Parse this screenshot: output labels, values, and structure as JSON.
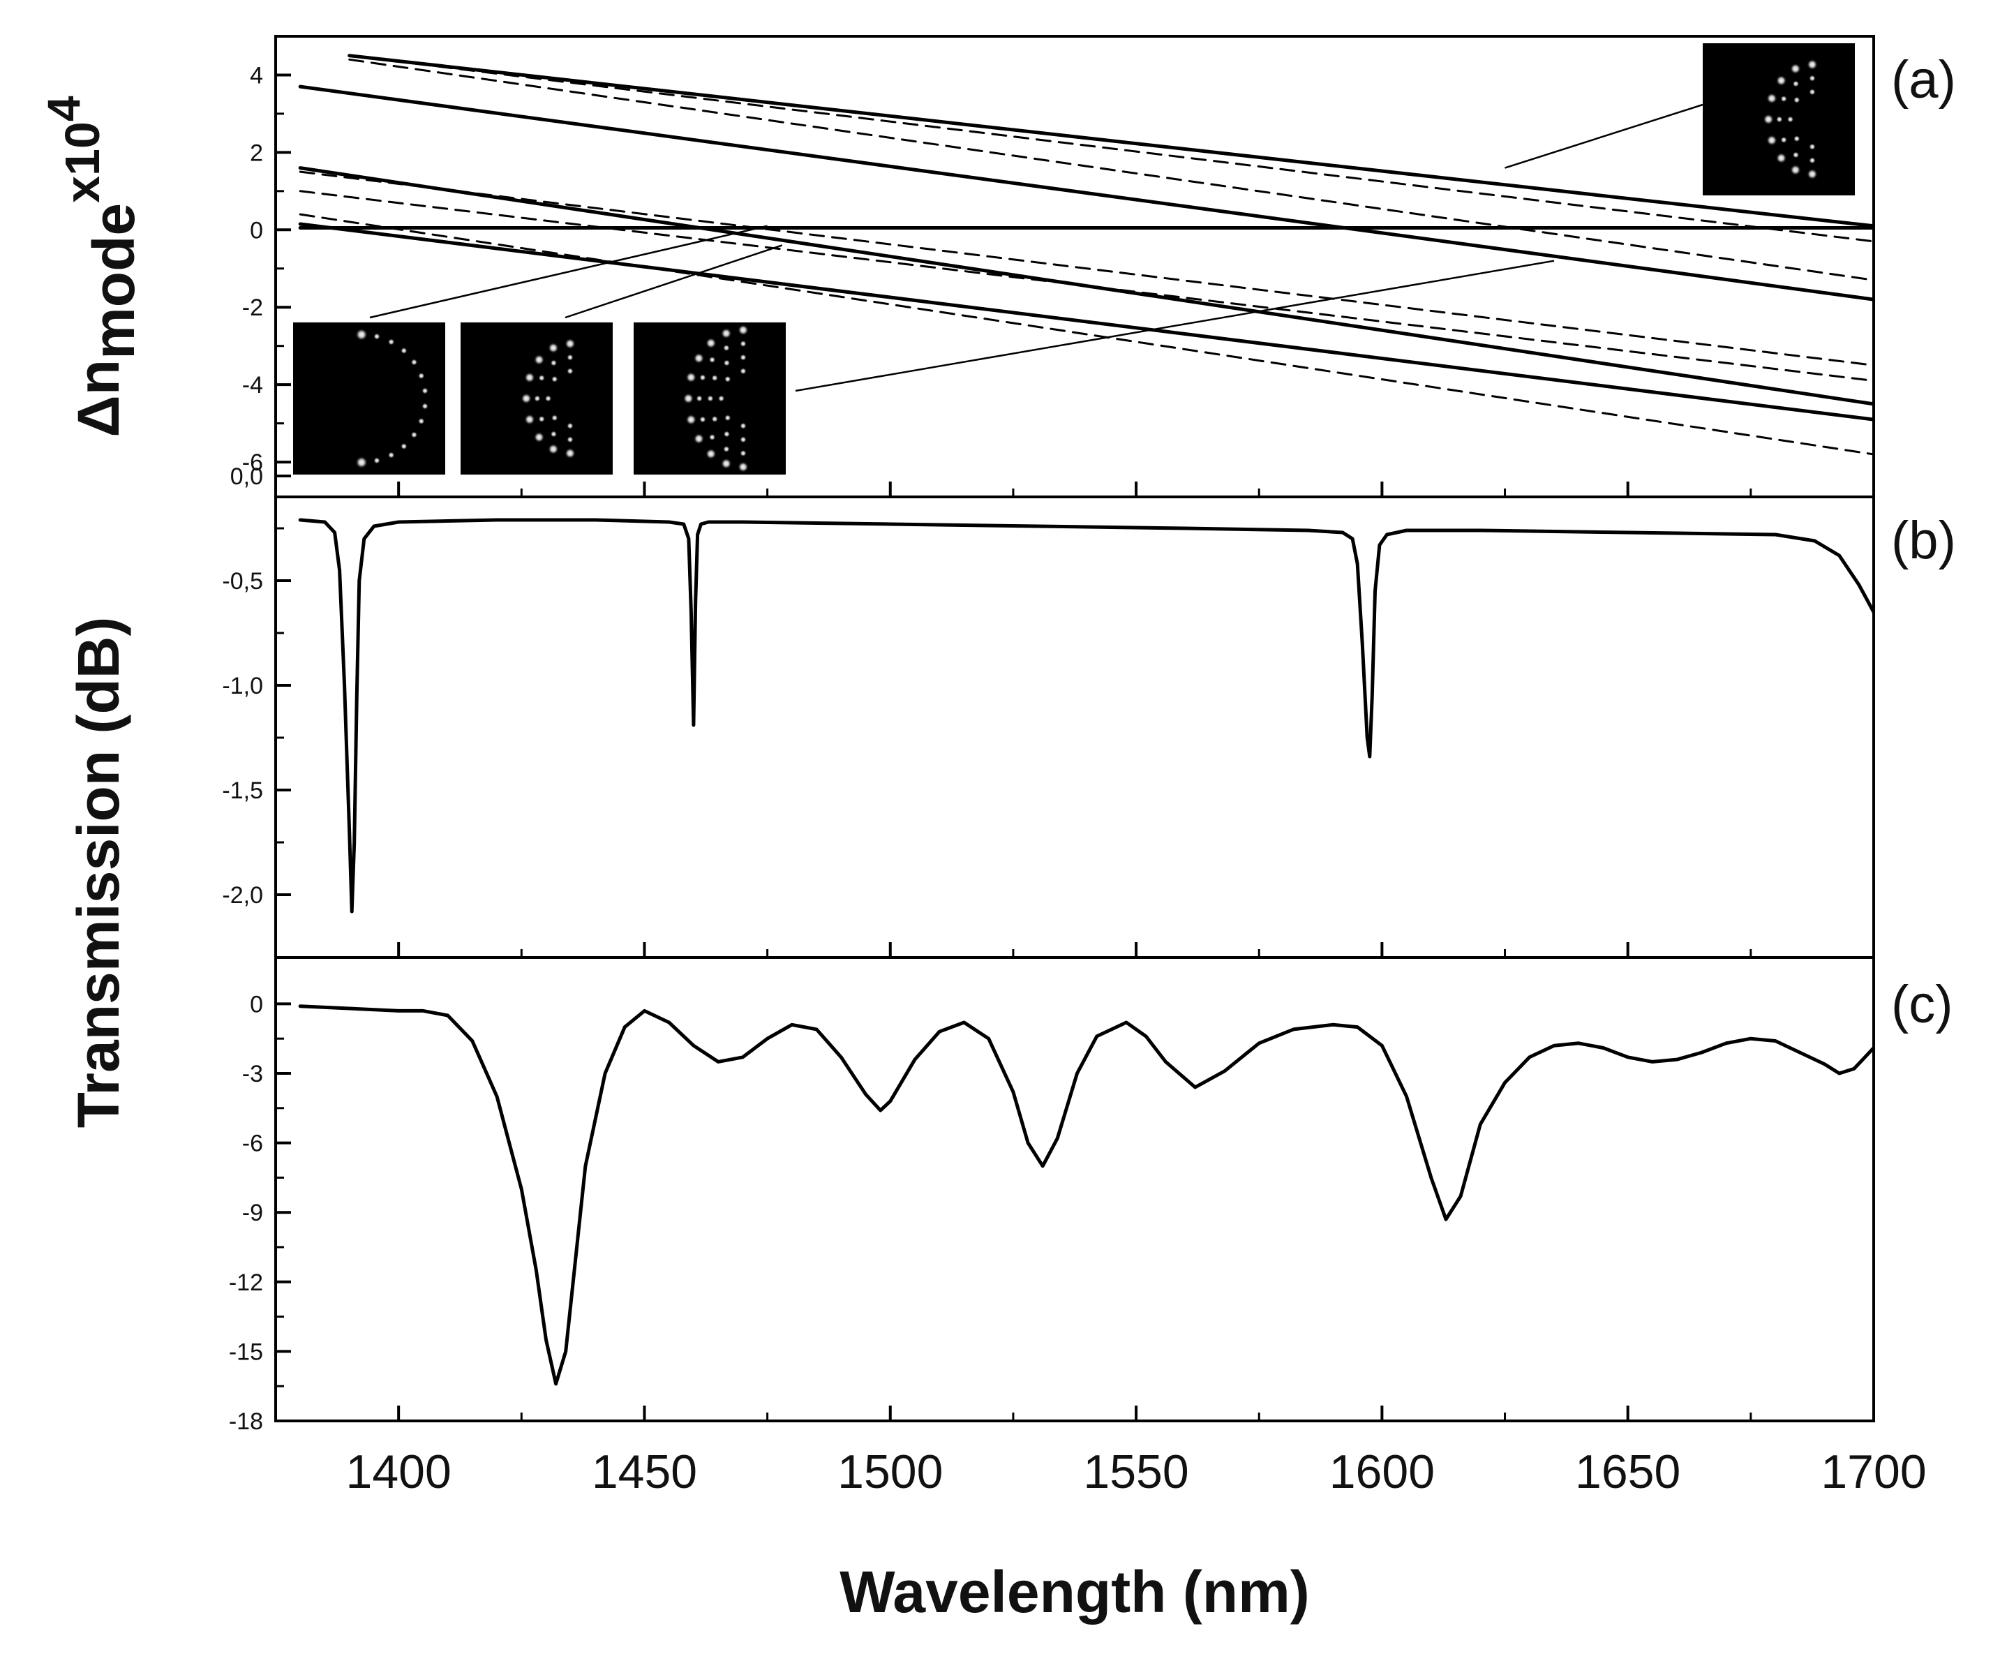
{
  "figure": {
    "xlabel": "Wavelength (nm)",
    "ylabel_b": "Transmission (dB)",
    "ylabel_a": {
      "base": "Δn",
      "sub": "mode",
      "mult": "x10",
      "exp": "4"
    },
    "panel_labels": [
      "(a)",
      "(b)",
      "(c)"
    ],
    "xlim": [
      1375,
      1700
    ],
    "xticks": [
      1400,
      1450,
      1500,
      1550,
      1600,
      1650,
      1700
    ],
    "xtick_labels": [
      "1400",
      "1450",
      "1500",
      "1550",
      "1600",
      "1650",
      "1700"
    ]
  },
  "chart_data": [
    {
      "panel": "(a)",
      "type": "line",
      "ylabel": "Δn_mode x10^4",
      "ylim": [
        -6.9,
        5
      ],
      "yticks": [
        4,
        2,
        0,
        -2,
        -4,
        -6
      ],
      "ytick_labels": [
        "4",
        "2",
        "0",
        "-2",
        "-4",
        "-6"
      ],
      "series": [
        {
          "name": "solid-1",
          "style": "solid",
          "x": [
            1390,
            1700
          ],
          "y": [
            4.5,
            0.1
          ]
        },
        {
          "name": "solid-2",
          "style": "solid",
          "x": [
            1380,
            1700
          ],
          "y": [
            3.7,
            -1.8
          ]
        },
        {
          "name": "solid-3",
          "style": "solid",
          "x": [
            1380,
            1700
          ],
          "y": [
            1.6,
            -4.5
          ]
        },
        {
          "name": "solid-4",
          "style": "solid",
          "x": [
            1380,
            1700
          ],
          "y": [
            0.15,
            -4.9
          ]
        },
        {
          "name": "solid-5",
          "style": "solid",
          "x": [
            1380,
            1700
          ],
          "y": [
            0.05,
            0.05
          ]
        },
        {
          "name": "dashed-1",
          "style": "dashed",
          "x": [
            1390,
            1700
          ],
          "y": [
            4.5,
            -0.3
          ]
        },
        {
          "name": "dashed-2",
          "style": "dashed",
          "x": [
            1390,
            1700
          ],
          "y": [
            4.4,
            -1.3
          ]
        },
        {
          "name": "dashed-3",
          "style": "dashed",
          "x": [
            1380,
            1700
          ],
          "y": [
            1.5,
            -3.5
          ]
        },
        {
          "name": "dashed-4",
          "style": "dashed",
          "x": [
            1380,
            1700
          ],
          "y": [
            1.0,
            -3.9
          ]
        },
        {
          "name": "dashed-5",
          "style": "dashed",
          "x": [
            1380,
            1700
          ],
          "y": [
            0.4,
            -5.8
          ]
        }
      ],
      "annotations": [
        {
          "name": "mode-profile-inset-top-right",
          "points_to": [
            1625,
            1.6
          ]
        },
        {
          "name": "mode-profile-inset-1",
          "points_to": [
            1475,
            0.1
          ]
        },
        {
          "name": "mode-profile-inset-2",
          "points_to": [
            1478,
            -0.4
          ]
        },
        {
          "name": "mode-profile-inset-3",
          "points_to": [
            1635,
            -0.8
          ]
        }
      ]
    },
    {
      "panel": "(b)",
      "type": "line",
      "ylabel": "Transmission (dB)",
      "ylim": [
        -2.3,
        -0.1
      ],
      "yticks": [
        0.0,
        -0.5,
        -1.0,
        -1.5,
        -2.0
      ],
      "ytick_labels": [
        "0,0",
        "-0,5",
        "-1,0",
        "-1,5",
        "-2,0"
      ],
      "series": [
        {
          "name": "transmission-b",
          "x": [
            1380,
            1385,
            1387,
            1388,
            1389,
            1390,
            1390.5,
            1391,
            1391.5,
            1392,
            1393,
            1395,
            1400,
            1420,
            1440,
            1455,
            1458,
            1459,
            1459.5,
            1460,
            1460.4,
            1460.8,
            1461.5,
            1463,
            1470,
            1500,
            1530,
            1560,
            1585,
            1592,
            1594,
            1595,
            1596,
            1597,
            1597.5,
            1598,
            1598.6,
            1599.5,
            1601,
            1605,
            1620,
            1650,
            1680,
            1688,
            1693,
            1697,
            1700
          ],
          "y": [
            -0.21,
            -0.22,
            -0.27,
            -0.45,
            -1.0,
            -1.7,
            -2.08,
            -1.75,
            -1.05,
            -0.5,
            -0.3,
            -0.24,
            -0.22,
            -0.21,
            -0.21,
            -0.22,
            -0.23,
            -0.3,
            -0.65,
            -1.19,
            -0.6,
            -0.28,
            -0.23,
            -0.22,
            -0.22,
            -0.23,
            -0.24,
            -0.25,
            -0.26,
            -0.27,
            -0.3,
            -0.42,
            -0.8,
            -1.25,
            -1.34,
            -1.05,
            -0.55,
            -0.33,
            -0.28,
            -0.26,
            -0.26,
            -0.27,
            -0.28,
            -0.31,
            -0.38,
            -0.52,
            -0.65
          ]
        }
      ]
    },
    {
      "panel": "(c)",
      "type": "line",
      "ylabel": "Transmission (dB)",
      "ylim": [
        -18,
        2
      ],
      "yticks": [
        0,
        -3,
        -6,
        -9,
        -12,
        -15,
        -18
      ],
      "ytick_labels": [
        "0",
        "-3",
        "-6",
        "-9",
        "-12",
        "-15",
        "-18"
      ],
      "series": [
        {
          "name": "transmission-c",
          "x": [
            1380,
            1390,
            1400,
            1405,
            1410,
            1415,
            1420,
            1425,
            1428,
            1430,
            1432,
            1434,
            1436,
            1438,
            1442,
            1446,
            1450,
            1455,
            1460,
            1465,
            1470,
            1475,
            1480,
            1485,
            1490,
            1495,
            1498,
            1500,
            1505,
            1510,
            1515,
            1520,
            1525,
            1528,
            1531,
            1534,
            1538,
            1542,
            1548,
            1552,
            1556,
            1562,
            1568,
            1575,
            1582,
            1590,
            1595,
            1600,
            1605,
            1610,
            1613,
            1616,
            1620,
            1625,
            1630,
            1635,
            1640,
            1645,
            1650,
            1655,
            1660,
            1665,
            1670,
            1675,
            1680,
            1685,
            1690,
            1693,
            1696,
            1700
          ],
          "y": [
            -0.1,
            -0.2,
            -0.3,
            -0.3,
            -0.5,
            -1.6,
            -4.0,
            -8.0,
            -11.5,
            -14.5,
            -16.4,
            -15.0,
            -11.0,
            -7.0,
            -3.0,
            -1.0,
            -0.3,
            -0.8,
            -1.8,
            -2.5,
            -2.3,
            -1.5,
            -0.9,
            -1.1,
            -2.3,
            -3.9,
            -4.6,
            -4.2,
            -2.4,
            -1.2,
            -0.8,
            -1.5,
            -3.8,
            -6.0,
            -7.0,
            -5.8,
            -3.0,
            -1.4,
            -0.8,
            -1.4,
            -2.5,
            -3.6,
            -2.9,
            -1.7,
            -1.1,
            -0.9,
            -1.0,
            -1.8,
            -4.0,
            -7.5,
            -9.3,
            -8.3,
            -5.2,
            -3.4,
            -2.3,
            -1.8,
            -1.7,
            -1.9,
            -2.3,
            -2.5,
            -2.4,
            -2.1,
            -1.7,
            -1.5,
            -1.6,
            -2.1,
            -2.6,
            -3.0,
            -2.8,
            -1.9
          ]
        }
      ]
    }
  ]
}
